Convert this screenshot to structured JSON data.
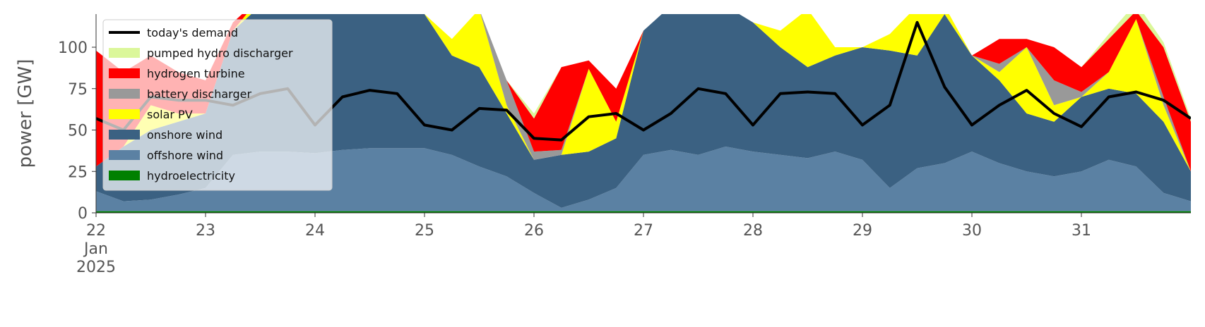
{
  "chart_data": {
    "type": "stacked_area",
    "y_label": "power [GW]",
    "x": [
      22,
      22.25,
      22.5,
      22.75,
      23,
      23.25,
      23.5,
      23.75,
      24,
      24.25,
      24.5,
      24.75,
      25,
      25.25,
      25.5,
      25.75,
      26,
      26.25,
      26.5,
      26.75,
      27,
      27.25,
      27.5,
      27.75,
      28,
      28.25,
      28.5,
      28.75,
      29,
      29.25,
      29.5,
      29.75,
      30,
      30.25,
      30.5,
      30.75,
      31,
      31.25,
      31.5,
      31.75,
      32
    ],
    "xlim": [
      22,
      32
    ],
    "xticks": [
      {
        "value": 22,
        "label": "22\nJan\n2025"
      },
      23,
      24,
      25,
      26,
      27,
      28,
      29,
      30,
      31
    ],
    "ylim": [
      0,
      120
    ],
    "yticks": [
      0,
      25,
      50,
      75,
      100
    ],
    "legend": "upper left",
    "series": [
      {
        "name": "hydroelectricity",
        "color": "#008000",
        "values": [
          1,
          1,
          1,
          1,
          1,
          1,
          1,
          1,
          1,
          1,
          1,
          1,
          1,
          1,
          1,
          1,
          1,
          1,
          1,
          1,
          1,
          1,
          1,
          1,
          1,
          1,
          1,
          1,
          1,
          1,
          1,
          1,
          1,
          1,
          1,
          1,
          1,
          1,
          1,
          1,
          1
        ]
      },
      {
        "name": "offshore wind",
        "color": "#5b81a3",
        "values": [
          12,
          6,
          7,
          10,
          14,
          34,
          36,
          36,
          35,
          37,
          38,
          38,
          38,
          34,
          27,
          21,
          11,
          2,
          7,
          14,
          34,
          37,
          34,
          39,
          36,
          34,
          32,
          36,
          31,
          14,
          26,
          29,
          36,
          29,
          24,
          21,
          24,
          31,
          27,
          11,
          6
        ]
      },
      {
        "name": "onshore wind",
        "color": "#3b6182",
        "values": [
          15,
          33,
          42,
          44,
          45,
          75,
          88,
          88,
          89,
          87,
          86,
          86,
          81,
          60,
          60,
          38,
          20,
          32,
          29,
          30,
          75,
          87,
          90,
          85,
          78,
          65,
          55,
          58,
          68,
          83,
          68,
          90,
          58,
          50,
          35,
          33,
          45,
          43,
          44,
          43,
          18
        ]
      },
      {
        "name": "solar PV",
        "color": "#ffff00",
        "values": [
          0,
          0,
          15,
          5,
          0,
          0,
          5,
          0,
          0,
          0,
          0,
          0,
          0,
          10,
          35,
          5,
          0,
          0,
          50,
          10,
          0,
          0,
          0,
          0,
          0,
          10,
          35,
          5,
          0,
          10,
          30,
          5,
          0,
          5,
          40,
          10,
          0,
          10,
          45,
          10,
          0
        ]
      },
      {
        "name": "battery discharger",
        "color": "#999999",
        "values": [
          0,
          0,
          0,
          0,
          0,
          0,
          0,
          0,
          0,
          0,
          0,
          0,
          0,
          0,
          0,
          15,
          5,
          3,
          0,
          0,
          0,
          0,
          0,
          0,
          0,
          0,
          0,
          0,
          0,
          0,
          0,
          0,
          0,
          5,
          0,
          15,
          3,
          0,
          0,
          5,
          0
        ]
      },
      {
        "name": "hydrogen turbine",
        "color": "#ff0000",
        "values": [
          70,
          45,
          30,
          25,
          20,
          5,
          0,
          0,
          0,
          0,
          0,
          0,
          0,
          0,
          0,
          0,
          20,
          50,
          5,
          20,
          0,
          0,
          0,
          0,
          0,
          0,
          0,
          0,
          0,
          0,
          0,
          0,
          0,
          15,
          5,
          20,
          15,
          20,
          5,
          30,
          30
        ]
      },
      {
        "name": "pumped hydro discharger",
        "color": "#dbf79a",
        "values": [
          0,
          0,
          0,
          0,
          0,
          0,
          0,
          0,
          0,
          0,
          0,
          0,
          0,
          0,
          0,
          0,
          3,
          0,
          0,
          0,
          0,
          0,
          0,
          0,
          0,
          0,
          0,
          0,
          0,
          0,
          0,
          0,
          0,
          0,
          0,
          0,
          0,
          3,
          5,
          3,
          2
        ]
      }
    ],
    "line_series": {
      "name": "today's demand",
      "color": "#000000",
      "values": [
        57,
        50,
        70,
        68,
        68,
        65,
        72,
        75,
        53,
        70,
        74,
        72,
        53,
        50,
        63,
        62,
        45,
        44,
        58,
        60,
        50,
        60,
        75,
        72,
        53,
        72,
        73,
        72,
        53,
        65,
        115,
        76,
        53,
        65,
        74,
        60,
        52,
        70,
        73,
        68,
        57
      ]
    }
  }
}
